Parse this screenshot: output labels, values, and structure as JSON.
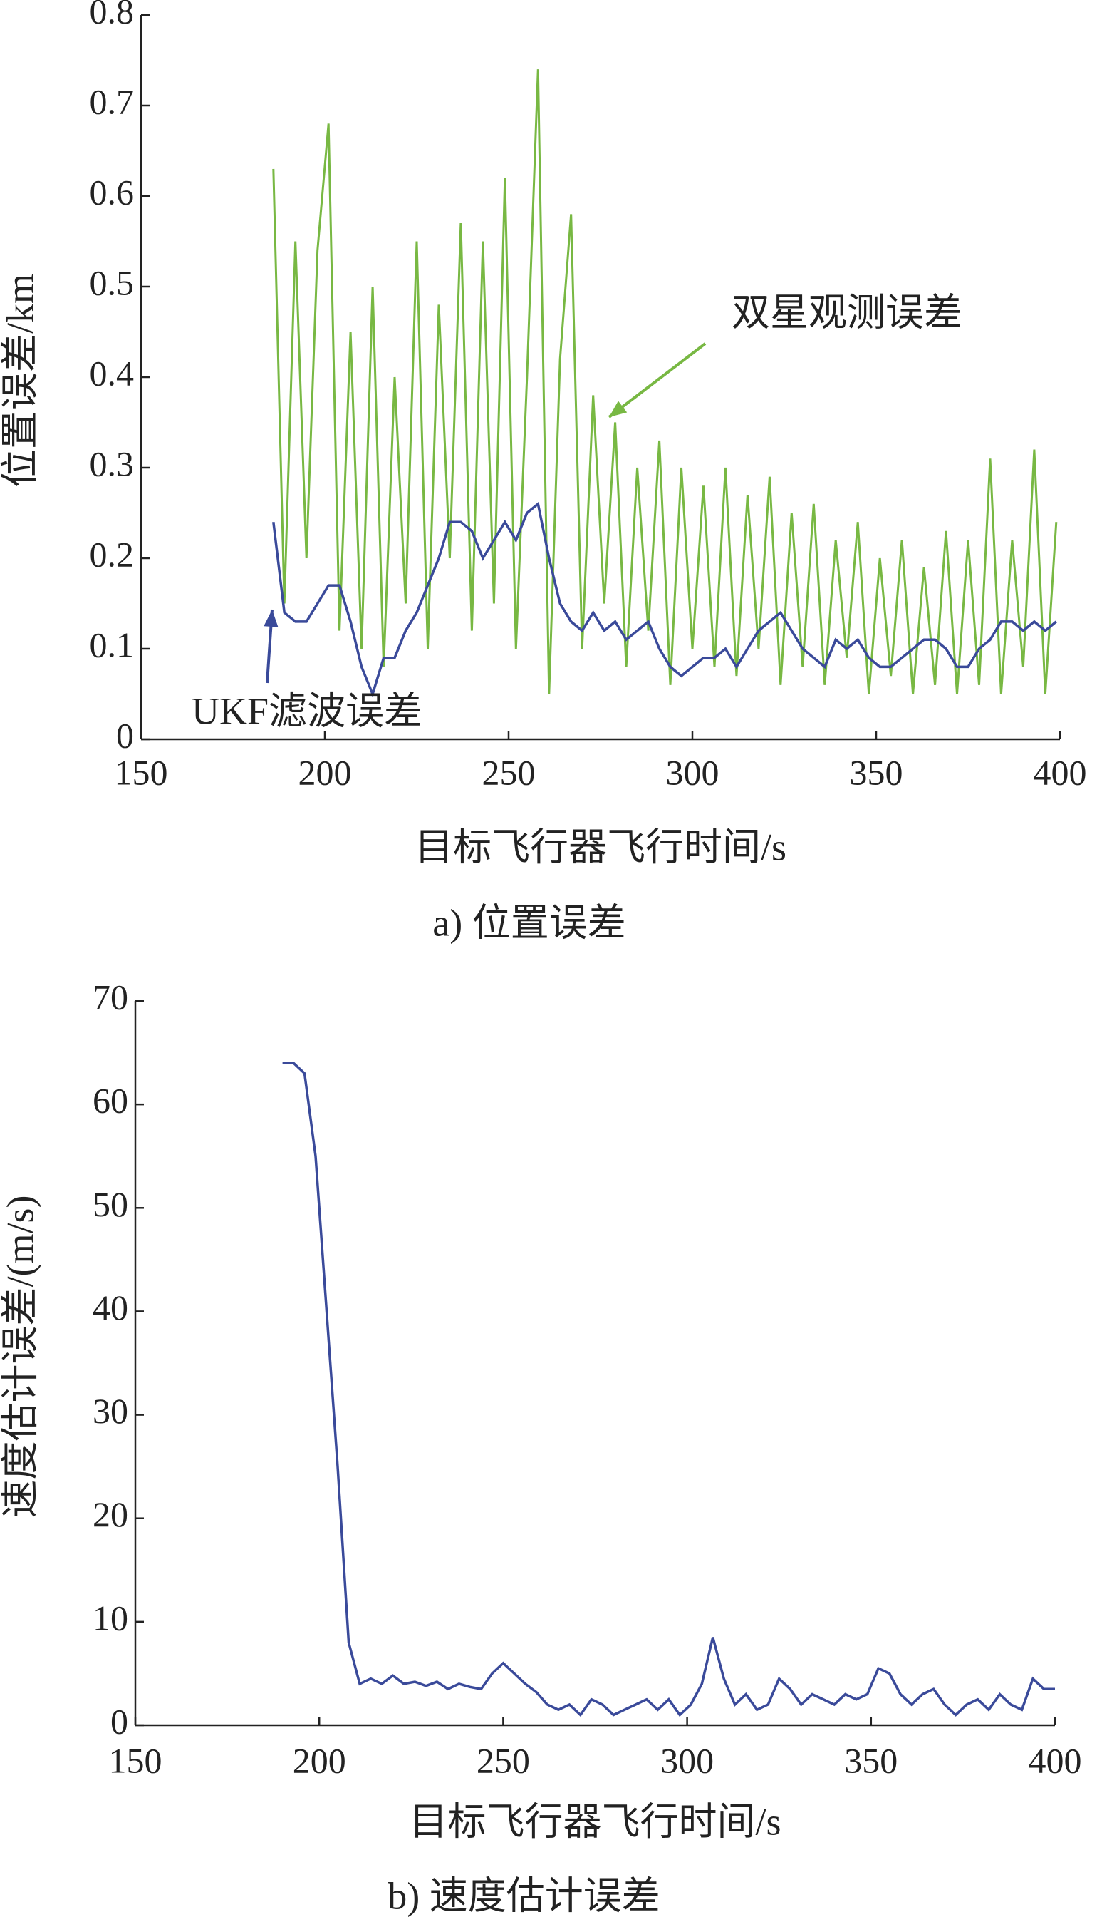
{
  "chart_data": [
    {
      "type": "line",
      "xlabel": "目标飞行器飞行时间/s",
      "ylabel": "位置误差/km",
      "caption": "a) 位置误差",
      "annotations": [
        "双星观测误差",
        "UKF滤波误差"
      ],
      "xlim": [
        150,
        400
      ],
      "xticks": [
        150,
        200,
        250,
        300,
        350,
        400
      ],
      "ylim": [
        0,
        0.8
      ],
      "yticks": [
        0,
        0.1,
        0.2,
        0.3,
        0.4,
        0.5,
        0.6,
        0.7,
        0.8
      ],
      "x": [
        186,
        189,
        192,
        195,
        198,
        201,
        204,
        207,
        210,
        213,
        216,
        219,
        222,
        225,
        228,
        231,
        234,
        237,
        240,
        243,
        246,
        249,
        252,
        255,
        258,
        261,
        264,
        267,
        270,
        273,
        276,
        279,
        282,
        285,
        288,
        291,
        294,
        297,
        300,
        303,
        306,
        309,
        312,
        315,
        318,
        321,
        324,
        327,
        330,
        333,
        336,
        339,
        342,
        345,
        348,
        351,
        354,
        357,
        360,
        363,
        366,
        369,
        372,
        375,
        378,
        381,
        384,
        387,
        390,
        393,
        396,
        399
      ],
      "series": [
        {
          "color": "#78b843",
          "values": [
            0.63,
            0.15,
            0.55,
            0.2,
            0.54,
            0.68,
            0.12,
            0.45,
            0.1,
            0.5,
            0.08,
            0.4,
            0.15,
            0.55,
            0.1,
            0.48,
            0.2,
            0.57,
            0.12,
            0.55,
            0.15,
            0.62,
            0.1,
            0.4,
            0.74,
            0.05,
            0.42,
            0.58,
            0.1,
            0.38,
            0.15,
            0.35,
            0.08,
            0.3,
            0.12,
            0.33,
            0.06,
            0.3,
            0.1,
            0.28,
            0.08,
            0.3,
            0.07,
            0.27,
            0.1,
            0.29,
            0.06,
            0.25,
            0.08,
            0.26,
            0.06,
            0.22,
            0.09,
            0.24,
            0.05,
            0.2,
            0.07,
            0.22,
            0.05,
            0.19,
            0.06,
            0.23,
            0.05,
            0.22,
            0.06,
            0.31,
            0.05,
            0.22,
            0.08,
            0.32,
            0.05,
            0.24
          ]
        },
        {
          "color": "#3a4a9a",
          "values": [
            0.24,
            0.14,
            0.13,
            0.13,
            0.15,
            0.17,
            0.17,
            0.13,
            0.08,
            0.05,
            0.09,
            0.09,
            0.12,
            0.14,
            0.17,
            0.2,
            0.24,
            0.24,
            0.23,
            0.2,
            0.22,
            0.24,
            0.22,
            0.25,
            0.26,
            0.2,
            0.15,
            0.13,
            0.12,
            0.14,
            0.12,
            0.13,
            0.11,
            0.12,
            0.13,
            0.1,
            0.08,
            0.07,
            0.08,
            0.09,
            0.09,
            0.1,
            0.08,
            0.1,
            0.12,
            0.13,
            0.14,
            0.12,
            0.1,
            0.09,
            0.08,
            0.11,
            0.1,
            0.11,
            0.09,
            0.08,
            0.08,
            0.09,
            0.1,
            0.11,
            0.11,
            0.1,
            0.08,
            0.08,
            0.1,
            0.11,
            0.13,
            0.13,
            0.12,
            0.13,
            0.12,
            0.13
          ]
        }
      ]
    },
    {
      "type": "line",
      "xlabel": "目标飞行器飞行时间/s",
      "ylabel": "速度估计误差/(m/s)",
      "caption": "b) 速度估计误差",
      "xlim": [
        150,
        400
      ],
      "xticks": [
        150,
        200,
        250,
        300,
        350,
        400
      ],
      "ylim": [
        0,
        70
      ],
      "yticks": [
        0,
        10,
        20,
        30,
        40,
        50,
        60,
        70
      ],
      "x": [
        190,
        193,
        196,
        199,
        202,
        205,
        208,
        211,
        214,
        217,
        220,
        223,
        226,
        229,
        232,
        235,
        238,
        241,
        244,
        247,
        250,
        253,
        256,
        259,
        262,
        265,
        268,
        271,
        274,
        277,
        280,
        283,
        286,
        289,
        292,
        295,
        298,
        301,
        304,
        307,
        310,
        313,
        316,
        319,
        322,
        325,
        328,
        331,
        334,
        337,
        340,
        343,
        346,
        349,
        352,
        355,
        358,
        361,
        364,
        367,
        370,
        373,
        376,
        379,
        382,
        385,
        388,
        391,
        394,
        397,
        400
      ],
      "series": [
        {
          "color": "#3a4a9a",
          "values": [
            64,
            64,
            63,
            55,
            40,
            25,
            8,
            4,
            4.5,
            4,
            4.8,
            4,
            4.2,
            3.8,
            4.2,
            3.5,
            4,
            3.7,
            3.5,
            5,
            6,
            5,
            4,
            3.2,
            2,
            1.5,
            2,
            1,
            2.5,
            2,
            1,
            1.5,
            2,
            2.5,
            1.5,
            2.5,
            1,
            2,
            4,
            8.5,
            4.5,
            2,
            3,
            1.5,
            2,
            4.5,
            3.5,
            2,
            3,
            2.5,
            2,
            3,
            2.5,
            3,
            5.5,
            5,
            3,
            2,
            3,
            3.5,
            2,
            1,
            2,
            2.5,
            1.5,
            3,
            2,
            1.5,
            4.5,
            3.5,
            3.5
          ]
        }
      ]
    }
  ]
}
